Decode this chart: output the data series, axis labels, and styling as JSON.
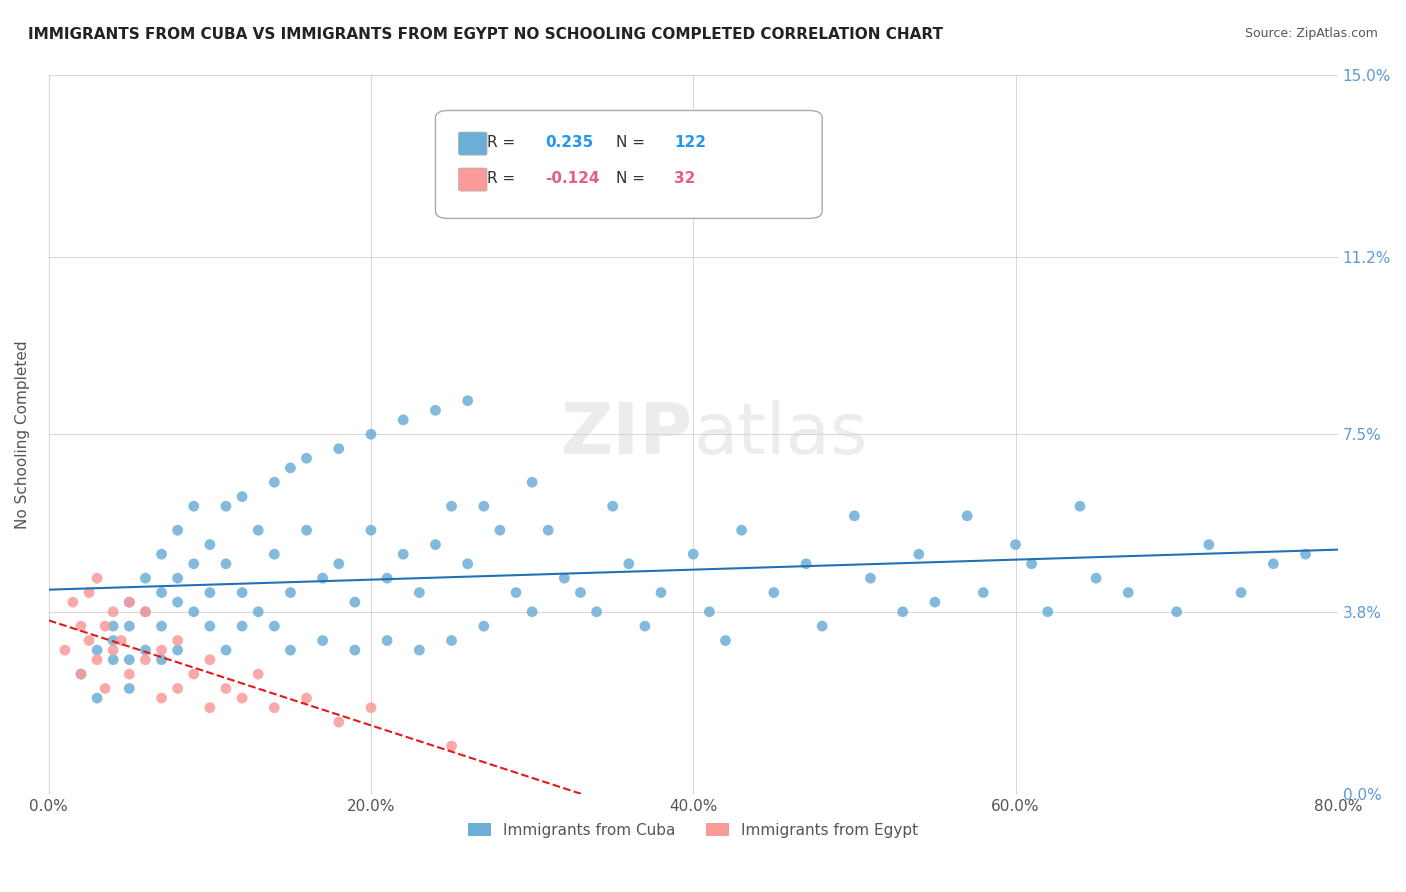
{
  "title": "IMMIGRANTS FROM CUBA VS IMMIGRANTS FROM EGYPT NO SCHOOLING COMPLETED CORRELATION CHART",
  "source": "Source: ZipAtlas.com",
  "xlabel": "",
  "ylabel": "No Schooling Completed",
  "xlim": [
    0.0,
    0.8
  ],
  "ylim": [
    0.0,
    0.15
  ],
  "xticks": [
    0.0,
    0.2,
    0.4,
    0.6,
    0.8
  ],
  "xtick_labels": [
    "0.0%",
    "20.0%",
    "40.0%",
    "60.0%",
    "80.0%"
  ],
  "ytick_labels": [
    "0.0%",
    "3.8%",
    "7.5%",
    "11.2%",
    "15.0%"
  ],
  "yticks": [
    0.0,
    0.038,
    0.075,
    0.112,
    0.15
  ],
  "right_ytick_labels": [
    "15.0%",
    "11.2%",
    "7.5%",
    "3.8%"
  ],
  "watermark": "ZIPatlas",
  "cuba_color": "#6baed6",
  "egypt_color": "#fb9a99",
  "cuba_line_color": "#2171b5",
  "egypt_line_color": "#e31a1c",
  "cuba_R": 0.235,
  "cuba_N": 122,
  "egypt_R": -0.124,
  "egypt_N": 32,
  "legend_r_color": "#2196f3",
  "legend_n_color": "#2196f3",
  "background_color": "#ffffff",
  "grid_color": "#cccccc",
  "cuba_scatter_x": [
    0.02,
    0.03,
    0.03,
    0.04,
    0.04,
    0.04,
    0.05,
    0.05,
    0.05,
    0.05,
    0.06,
    0.06,
    0.06,
    0.07,
    0.07,
    0.07,
    0.07,
    0.08,
    0.08,
    0.08,
    0.08,
    0.09,
    0.09,
    0.09,
    0.1,
    0.1,
    0.1,
    0.11,
    0.11,
    0.11,
    0.12,
    0.12,
    0.12,
    0.13,
    0.13,
    0.14,
    0.14,
    0.14,
    0.15,
    0.15,
    0.15,
    0.16,
    0.16,
    0.17,
    0.17,
    0.18,
    0.18,
    0.19,
    0.19,
    0.2,
    0.2,
    0.21,
    0.21,
    0.22,
    0.22,
    0.23,
    0.23,
    0.24,
    0.24,
    0.25,
    0.25,
    0.26,
    0.26,
    0.27,
    0.27,
    0.28,
    0.29,
    0.3,
    0.3,
    0.31,
    0.32,
    0.33,
    0.34,
    0.35,
    0.36,
    0.37,
    0.38,
    0.4,
    0.41,
    0.42,
    0.43,
    0.45,
    0.47,
    0.48,
    0.5,
    0.51,
    0.53,
    0.54,
    0.55,
    0.57,
    0.58,
    0.6,
    0.61,
    0.62,
    0.64,
    0.65,
    0.67,
    0.7,
    0.72,
    0.74,
    0.76,
    0.78
  ],
  "cuba_scatter_y": [
    0.025,
    0.03,
    0.02,
    0.035,
    0.028,
    0.032,
    0.04,
    0.028,
    0.022,
    0.035,
    0.045,
    0.038,
    0.03,
    0.05,
    0.035,
    0.042,
    0.028,
    0.055,
    0.04,
    0.03,
    0.045,
    0.06,
    0.038,
    0.048,
    0.052,
    0.035,
    0.042,
    0.06,
    0.048,
    0.03,
    0.062,
    0.042,
    0.035,
    0.055,
    0.038,
    0.065,
    0.05,
    0.035,
    0.068,
    0.042,
    0.03,
    0.07,
    0.055,
    0.045,
    0.032,
    0.072,
    0.048,
    0.04,
    0.03,
    0.075,
    0.055,
    0.045,
    0.032,
    0.078,
    0.05,
    0.042,
    0.03,
    0.08,
    0.052,
    0.06,
    0.032,
    0.082,
    0.048,
    0.06,
    0.035,
    0.055,
    0.042,
    0.065,
    0.038,
    0.055,
    0.045,
    0.042,
    0.038,
    0.06,
    0.048,
    0.035,
    0.042,
    0.05,
    0.038,
    0.032,
    0.055,
    0.042,
    0.048,
    0.035,
    0.058,
    0.045,
    0.038,
    0.05,
    0.04,
    0.058,
    0.042,
    0.052,
    0.048,
    0.038,
    0.06,
    0.045,
    0.042,
    0.038,
    0.052,
    0.042,
    0.048,
    0.05
  ],
  "egypt_scatter_x": [
    0.01,
    0.015,
    0.02,
    0.02,
    0.025,
    0.025,
    0.03,
    0.03,
    0.035,
    0.035,
    0.04,
    0.04,
    0.045,
    0.05,
    0.05,
    0.06,
    0.06,
    0.07,
    0.07,
    0.08,
    0.08,
    0.09,
    0.1,
    0.1,
    0.11,
    0.12,
    0.13,
    0.14,
    0.16,
    0.18,
    0.2,
    0.25
  ],
  "egypt_scatter_y": [
    0.03,
    0.04,
    0.035,
    0.025,
    0.042,
    0.032,
    0.045,
    0.028,
    0.035,
    0.022,
    0.038,
    0.03,
    0.032,
    0.04,
    0.025,
    0.038,
    0.028,
    0.03,
    0.02,
    0.032,
    0.022,
    0.025,
    0.028,
    0.018,
    0.022,
    0.02,
    0.025,
    0.018,
    0.02,
    0.015,
    0.018,
    0.01
  ]
}
